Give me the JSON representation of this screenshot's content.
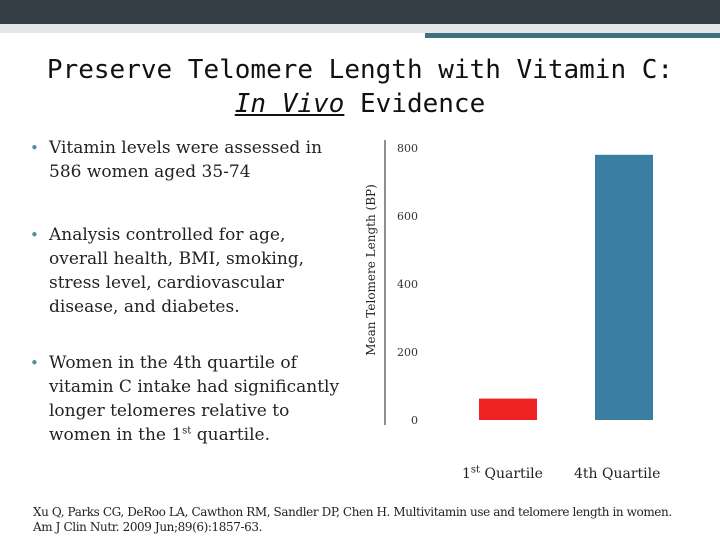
{
  "slide": {
    "title_line1": "Preserve Telomere Length with Vitamin C:",
    "title_italic": "In Vivo",
    "title_rest": " Evidence"
  },
  "bullets": [
    "Vitamin levels were assessed in 586 women aged 35-74",
    "Analysis controlled for age, overall health, BMI, smoking, stress level, cardiovascular disease, and diabetes.",
    {
      "text_before": "Women in the 4th quartile of vitamin C intake had significantly longer telomeres relative to women in the 1",
      "superscript": "st",
      "text_after": " quartile."
    }
  ],
  "chart_data": {
    "type": "bar",
    "title": "",
    "xlabel": "",
    "ylabel": "Mean Telomere Length (BP)",
    "ylim": [
      0,
      800
    ],
    "yticks": [
      0,
      200,
      400,
      600,
      800
    ],
    "categories": [
      {
        "pre": "1",
        "sup": "st",
        "post": " Quartile"
      },
      {
        "pre": "4th Quartile",
        "sup": "",
        "post": ""
      }
    ],
    "values": [
      63,
      780
    ],
    "colors": [
      "#ef2222",
      "#3a7fa3"
    ]
  },
  "citation": "Xu Q, Parks CG, DeRoo LA, Cawthon RM, Sandler DP, Chen H. Multivitamin use and telomere length in women. Am J Clin Nutr. 2009 Jun;89(6):1857-63.",
  "colors": {
    "header_dark": "#333d43",
    "header_teal": "#3f6f80",
    "bullet": "#4f8da3"
  }
}
